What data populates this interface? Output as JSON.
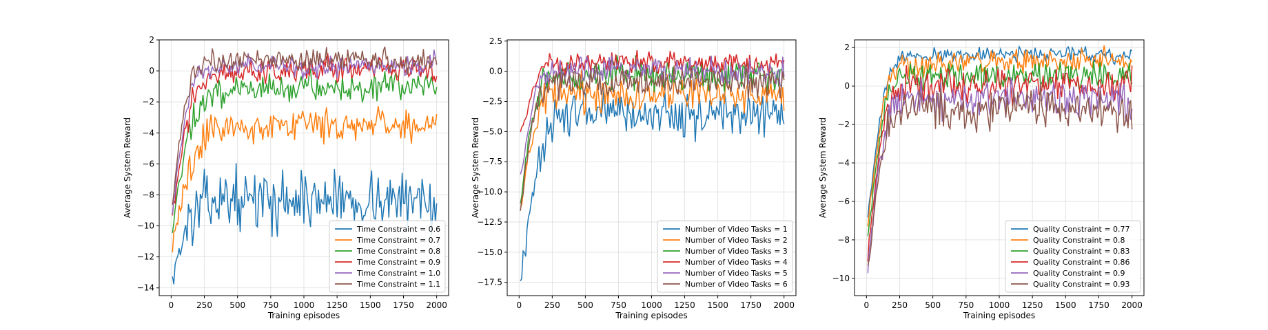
{
  "chart_data": [
    {
      "type": "line",
      "xlabel": "Training episodes",
      "ylabel": "Average System Reward",
      "xlim": [
        -90,
        2090
      ],
      "ylim": [
        -14.5,
        2.0
      ],
      "xticks": [
        0,
        250,
        500,
        750,
        1000,
        1250,
        1500,
        1750,
        2000
      ],
      "yticks": [
        -14,
        -12,
        -10,
        -8,
        -6,
        -4,
        -2,
        0,
        2
      ],
      "grid": true,
      "legend_position": "lower-right",
      "x": [
        0,
        50,
        100,
        150,
        200,
        250,
        300,
        400,
        500,
        600,
        700,
        800,
        900,
        1000,
        1100,
        1200,
        1300,
        1400,
        1500,
        1600,
        1700,
        1800,
        1900,
        2000
      ],
      "series": [
        {
          "name": "Time Constraint = 0.6",
          "color": "#1f77b4",
          "values": [
            -13.5,
            -12.0,
            -10.5,
            -9.6,
            -9.0,
            -8.6,
            -8.3,
            -8.3,
            -8.2,
            -8.4,
            -8.3,
            -8.5,
            -8.2,
            -8.3,
            -8.4,
            -8.2,
            -8.3,
            -8.4,
            -8.2,
            -8.3,
            -8.5,
            -8.3,
            -8.2,
            -8.5
          ]
        },
        {
          "name": "Time Constraint = 0.7",
          "color": "#ff7f0e",
          "values": [
            -11.7,
            -9.5,
            -7.6,
            -6.2,
            -5.0,
            -4.3,
            -3.9,
            -3.7,
            -3.5,
            -3.6,
            -3.5,
            -3.6,
            -3.4,
            -3.5,
            -3.4,
            -3.6,
            -3.5,
            -3.4,
            -3.5,
            -3.4,
            -3.6,
            -3.4,
            -3.5,
            -3.3
          ]
        },
        {
          "name": "Time Constraint = 0.8",
          "color": "#2ca02c",
          "values": [
            -10.8,
            -7.8,
            -5.2,
            -3.6,
            -2.5,
            -1.8,
            -1.5,
            -1.3,
            -1.2,
            -1.1,
            -1.2,
            -1.0,
            -1.1,
            -1.0,
            -1.1,
            -1.0,
            -1.1,
            -1.0,
            -1.1,
            -1.0,
            -1.0,
            -1.1,
            -1.0,
            -1.0
          ]
        },
        {
          "name": "Time Constraint = 0.9",
          "color": "#d62728",
          "values": [
            -10.3,
            -6.8,
            -4.0,
            -2.2,
            -1.1,
            -0.6,
            -0.3,
            -0.1,
            -0.1,
            0.0,
            -0.1,
            0.0,
            0.0,
            0.0,
            -0.1,
            0.0,
            0.0,
            0.0,
            0.0,
            0.0,
            -0.1,
            0.0,
            0.0,
            0.1
          ]
        },
        {
          "name": "Time Constraint = 1.0",
          "color": "#9467bd",
          "values": [
            -10.0,
            -6.0,
            -3.2,
            -1.4,
            -0.4,
            0.0,
            0.2,
            0.3,
            0.2,
            0.3,
            0.2,
            0.3,
            0.3,
            0.2,
            0.3,
            0.3,
            0.2,
            0.3,
            0.3,
            0.2,
            0.3,
            0.3,
            0.4,
            0.5
          ]
        },
        {
          "name": "Time Constraint = 1.1",
          "color": "#8c564b",
          "values": [
            -9.5,
            -5.5,
            -2.4,
            -0.7,
            0.2,
            0.6,
            0.7,
            0.7,
            0.7,
            0.6,
            0.7,
            0.6,
            0.7,
            0.6,
            0.7,
            0.6,
            0.7,
            0.7,
            0.6,
            0.7,
            0.6,
            0.7,
            0.7,
            0.8
          ]
        }
      ]
    },
    {
      "type": "line",
      "xlabel": "Training episodes",
      "ylabel": "Average System Reward",
      "xlim": [
        -90,
        2090
      ],
      "ylim": [
        -18.6,
        2.6
      ],
      "xticks": [
        0,
        250,
        500,
        750,
        1000,
        1250,
        1500,
        1750,
        2000
      ],
      "yticks": [
        -17.5,
        -15.0,
        -12.5,
        -10.0,
        -7.5,
        -5.0,
        -2.5,
        0.0,
        2.5
      ],
      "grid": true,
      "legend_position": "lower-right",
      "x": [
        0,
        50,
        100,
        150,
        200,
        250,
        300,
        400,
        500,
        600,
        700,
        800,
        900,
        1000,
        1100,
        1200,
        1300,
        1400,
        1500,
        1600,
        1700,
        1800,
        1900,
        2000
      ],
      "series": [
        {
          "name": "Number of Video Tasks = 1",
          "color": "#1f77b4",
          "values": [
            -17.8,
            -14.5,
            -10.5,
            -7.0,
            -5.0,
            -4.2,
            -3.9,
            -3.6,
            -3.5,
            -3.6,
            -3.4,
            -3.5,
            -3.6,
            -3.4,
            -3.5,
            -3.6,
            -3.4,
            -3.5,
            -3.6,
            -3.4,
            -3.5,
            -3.6,
            -3.5,
            -4.0
          ]
        },
        {
          "name": "Number of Video Tasks = 2",
          "color": "#ff7f0e",
          "values": [
            -12.8,
            -8.5,
            -5.5,
            -3.6,
            -2.6,
            -2.2,
            -2.0,
            -1.9,
            -1.8,
            -1.9,
            -1.8,
            -1.9,
            -1.8,
            -1.9,
            -1.8,
            -1.9,
            -1.8,
            -1.9,
            -1.8,
            -1.9,
            -1.8,
            -1.9,
            -1.8,
            -2.2
          ]
        },
        {
          "name": "Number of Video Tasks = 3",
          "color": "#2ca02c",
          "values": [
            -12.0,
            -7.5,
            -4.0,
            -1.8,
            -0.8,
            -0.5,
            -0.4,
            -0.3,
            -0.3,
            -0.2,
            -0.3,
            -0.2,
            -0.3,
            -0.2,
            -0.3,
            -0.2,
            -0.3,
            -0.2,
            -0.3,
            -0.2,
            -0.3,
            -0.2,
            -0.3,
            -0.4
          ]
        },
        {
          "name": "Number of Video Tasks = 4",
          "color": "#d62728",
          "values": [
            -5.6,
            -3.8,
            -1.5,
            -0.2,
            0.4,
            0.6,
            0.6,
            0.7,
            0.6,
            0.7,
            0.6,
            0.7,
            0.6,
            0.7,
            0.6,
            0.7,
            0.6,
            0.7,
            0.6,
            0.7,
            0.6,
            0.7,
            0.6,
            0.7
          ]
        },
        {
          "name": "Number of Video Tasks = 5",
          "color": "#9467bd",
          "values": [
            -9.0,
            -6.0,
            -3.0,
            -1.2,
            -0.4,
            0.0,
            0.1,
            0.1,
            0.1,
            0.0,
            0.1,
            0.0,
            0.1,
            0.0,
            0.1,
            0.0,
            0.1,
            0.0,
            0.1,
            0.0,
            0.1,
            0.0,
            0.1,
            -0.2
          ]
        },
        {
          "name": "Number of Video Tasks = 6",
          "color": "#8c564b",
          "values": [
            -12.5,
            -7.8,
            -4.5,
            -2.6,
            -1.6,
            -1.2,
            -1.0,
            -0.9,
            -0.8,
            -0.9,
            -0.8,
            -0.9,
            -0.8,
            -0.9,
            -0.8,
            -0.9,
            -0.8,
            -0.9,
            -0.8,
            -0.9,
            -0.8,
            -0.9,
            -0.8,
            -1.0
          ]
        }
      ]
    },
    {
      "type": "line",
      "xlabel": "Training episodes",
      "ylabel": "Average System Reward",
      "xlim": [
        -90,
        2090
      ],
      "ylim": [
        -10.9,
        2.4
      ],
      "xticks": [
        0,
        250,
        500,
        750,
        1000,
        1250,
        1500,
        1750,
        2000
      ],
      "yticks": [
        -10,
        -8,
        -6,
        -4,
        -2,
        0,
        2
      ],
      "grid": true,
      "legend_position": "lower-right",
      "x": [
        0,
        50,
        100,
        150,
        200,
        250,
        300,
        400,
        500,
        600,
        700,
        800,
        900,
        1000,
        1100,
        1200,
        1300,
        1400,
        1500,
        1600,
        1700,
        1800,
        1900,
        2000
      ],
      "series": [
        {
          "name": "Quality Constraint = 0.77",
          "color": "#1f77b4",
          "values": [
            -7.3,
            -4.5,
            -1.8,
            0.0,
            1.0,
            1.4,
            1.5,
            1.6,
            1.6,
            1.7,
            1.6,
            1.7,
            1.6,
            1.7,
            1.6,
            1.7,
            1.6,
            1.7,
            1.6,
            1.7,
            1.6,
            1.7,
            1.6,
            1.6
          ]
        },
        {
          "name": "Quality Constraint = 0.8",
          "color": "#ff7f0e",
          "values": [
            -7.8,
            -5.0,
            -2.2,
            -0.3,
            0.6,
            1.0,
            1.1,
            1.2,
            1.2,
            1.3,
            1.2,
            1.3,
            1.2,
            1.3,
            1.2,
            1.3,
            1.2,
            1.3,
            1.2,
            1.3,
            1.2,
            1.3,
            1.2,
            1.2
          ]
        },
        {
          "name": "Quality Constraint = 0.83",
          "color": "#2ca02c",
          "values": [
            -8.4,
            -5.5,
            -2.8,
            -0.8,
            0.1,
            0.4,
            0.5,
            0.6,
            0.6,
            0.5,
            0.6,
            0.5,
            0.6,
            0.5,
            0.6,
            0.5,
            0.6,
            0.5,
            0.6,
            0.5,
            0.6,
            0.5,
            0.6,
            0.4
          ]
        },
        {
          "name": "Quality Constraint = 0.86",
          "color": "#d62728",
          "values": [
            -9.5,
            -6.2,
            -3.3,
            -1.3,
            -0.4,
            -0.1,
            0.0,
            0.0,
            0.0,
            0.1,
            0.0,
            0.1,
            0.0,
            0.1,
            0.0,
            0.1,
            0.0,
            0.1,
            0.0,
            0.1,
            0.0,
            0.1,
            0.0,
            0.2
          ]
        },
        {
          "name": "Quality Constraint = 0.9",
          "color": "#9467bd",
          "values": [
            -10.2,
            -6.8,
            -3.8,
            -1.8,
            -1.0,
            -0.8,
            -0.7,
            -0.7,
            -0.7,
            -0.6,
            -0.7,
            -0.6,
            -0.7,
            -0.6,
            -0.7,
            -0.6,
            -0.7,
            -0.6,
            -0.7,
            -0.6,
            -0.7,
            -0.6,
            -0.7,
            -0.8
          ]
        },
        {
          "name": "Quality Constraint = 0.93",
          "color": "#8c564b",
          "values": [
            -9.8,
            -7.0,
            -4.2,
            -2.4,
            -1.6,
            -1.3,
            -1.2,
            -1.2,
            -1.1,
            -1.2,
            -1.1,
            -1.2,
            -1.1,
            -1.2,
            -1.1,
            -1.2,
            -1.1,
            -1.2,
            -1.1,
            -1.2,
            -1.1,
            -1.2,
            -1.1,
            -1.3
          ]
        }
      ]
    }
  ]
}
